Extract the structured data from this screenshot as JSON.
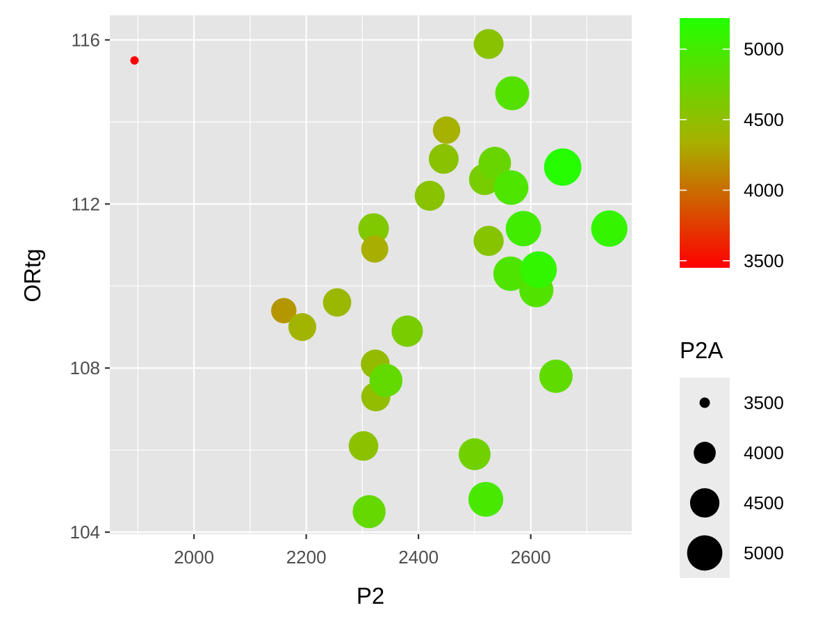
{
  "chart_data": {
    "type": "scatter",
    "title": "",
    "xlabel": "P2",
    "ylabel": "ORtg",
    "xlim": [
      1850,
      2780
    ],
    "ylim": [
      103.95,
      116.6
    ],
    "x_ticks": [
      2000,
      2200,
      2400,
      2600
    ],
    "x_tick_labels": [
      "2000",
      "2200",
      "2400",
      "2600"
    ],
    "y_ticks": [
      104,
      108,
      112,
      116
    ],
    "y_tick_labels": [
      "104",
      "108",
      "112",
      "116"
    ],
    "grid": true,
    "size_legend": {
      "title": "P2A",
      "breaks": [
        3500,
        4000,
        4500,
        5000
      ],
      "labels": [
        "3500",
        "4000",
        "4500",
        "5000"
      ]
    },
    "color_legend": {
      "title": "",
      "range": [
        3450,
        5220
      ],
      "breaks": [
        3500,
        4000,
        4500,
        5000
      ],
      "labels": [
        "3500",
        "4000",
        "4500",
        "5000"
      ],
      "low_color": "#FF0000",
      "high_color": "#22FF00"
    },
    "legend_position": "right",
    "colors": {
      "panel_background": "#E5E5E5",
      "grid_line": "#FFFFFF",
      "size_legend_key_background": "#EBEBEB"
    },
    "points": [
      {
        "x": 1894,
        "y": 115.5,
        "p2a": 3450
      },
      {
        "x": 2160,
        "y": 109.4,
        "p2a": 4210
      },
      {
        "x": 2193,
        "y": 109.0,
        "p2a": 4380
      },
      {
        "x": 2255,
        "y": 109.6,
        "p2a": 4420
      },
      {
        "x": 2302,
        "y": 106.1,
        "p2a": 4520
      },
      {
        "x": 2312,
        "y": 104.5,
        "p2a": 4790
      },
      {
        "x": 2320,
        "y": 111.4,
        "p2a": 4600
      },
      {
        "x": 2322,
        "y": 110.9,
        "p2a": 4330
      },
      {
        "x": 2323,
        "y": 108.1,
        "p2a": 4460
      },
      {
        "x": 2324,
        "y": 107.3,
        "p2a": 4480
      },
      {
        "x": 2342,
        "y": 107.7,
        "p2a": 4800
      },
      {
        "x": 2380,
        "y": 108.9,
        "p2a": 4650
      },
      {
        "x": 2420,
        "y": 112.2,
        "p2a": 4550
      },
      {
        "x": 2445,
        "y": 113.1,
        "p2a": 4540
      },
      {
        "x": 2450,
        "y": 113.8,
        "p2a": 4350
      },
      {
        "x": 2500,
        "y": 105.9,
        "p2a": 4700
      },
      {
        "x": 2518,
        "y": 112.6,
        "p2a": 4660
      },
      {
        "x": 2520,
        "y": 104.8,
        "p2a": 4960
      },
      {
        "x": 2525,
        "y": 111.1,
        "p2a": 4560
      },
      {
        "x": 2525,
        "y": 115.9,
        "p2a": 4540
      },
      {
        "x": 2536,
        "y": 113.0,
        "p2a": 4750
      },
      {
        "x": 2564,
        "y": 110.3,
        "p2a": 4920
      },
      {
        "x": 2565,
        "y": 112.4,
        "p2a": 4930
      },
      {
        "x": 2567,
        "y": 114.7,
        "p2a": 4880
      },
      {
        "x": 2587,
        "y": 111.4,
        "p2a": 5010
      },
      {
        "x": 2610,
        "y": 109.9,
        "p2a": 4900
      },
      {
        "x": 2614,
        "y": 110.4,
        "p2a": 5120
      },
      {
        "x": 2645,
        "y": 107.8,
        "p2a": 4820
      },
      {
        "x": 2657,
        "y": 112.9,
        "p2a": 5200
      },
      {
        "x": 2740,
        "y": 111.4,
        "p2a": 5100
      }
    ]
  }
}
